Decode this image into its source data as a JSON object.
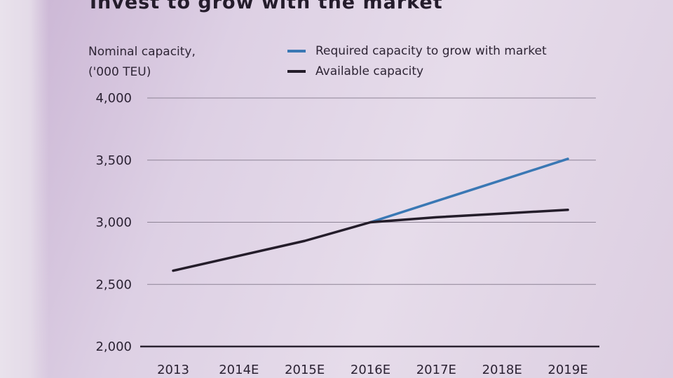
{
  "chart_data": {
    "type": "line",
    "title": "Invest to grow with the market",
    "ylabel_line1": "Nominal capacity,",
    "ylabel_line2": "('000 TEU)",
    "categories": [
      "2013",
      "2014E",
      "2015E",
      "2016E",
      "2017E",
      "2018E",
      "2019E"
    ],
    "y_ticks": [
      "4,000",
      "3,500",
      "3,000",
      "2,500",
      "2,000"
    ],
    "y_tick_values": [
      4000,
      3500,
      3000,
      2500,
      2000
    ],
    "ylim": [
      2000,
      4000
    ],
    "grid": true,
    "legend_position": "top",
    "series": [
      {
        "name": "Required capacity to grow with market",
        "color": "#3a78b4",
        "values": [
          null,
          null,
          null,
          3000,
          3170,
          3340,
          3510
        ]
      },
      {
        "name": "Available capacity",
        "color": "#241d2a",
        "values": [
          2610,
          2730,
          2850,
          3000,
          3040,
          3070,
          3100
        ]
      }
    ]
  }
}
